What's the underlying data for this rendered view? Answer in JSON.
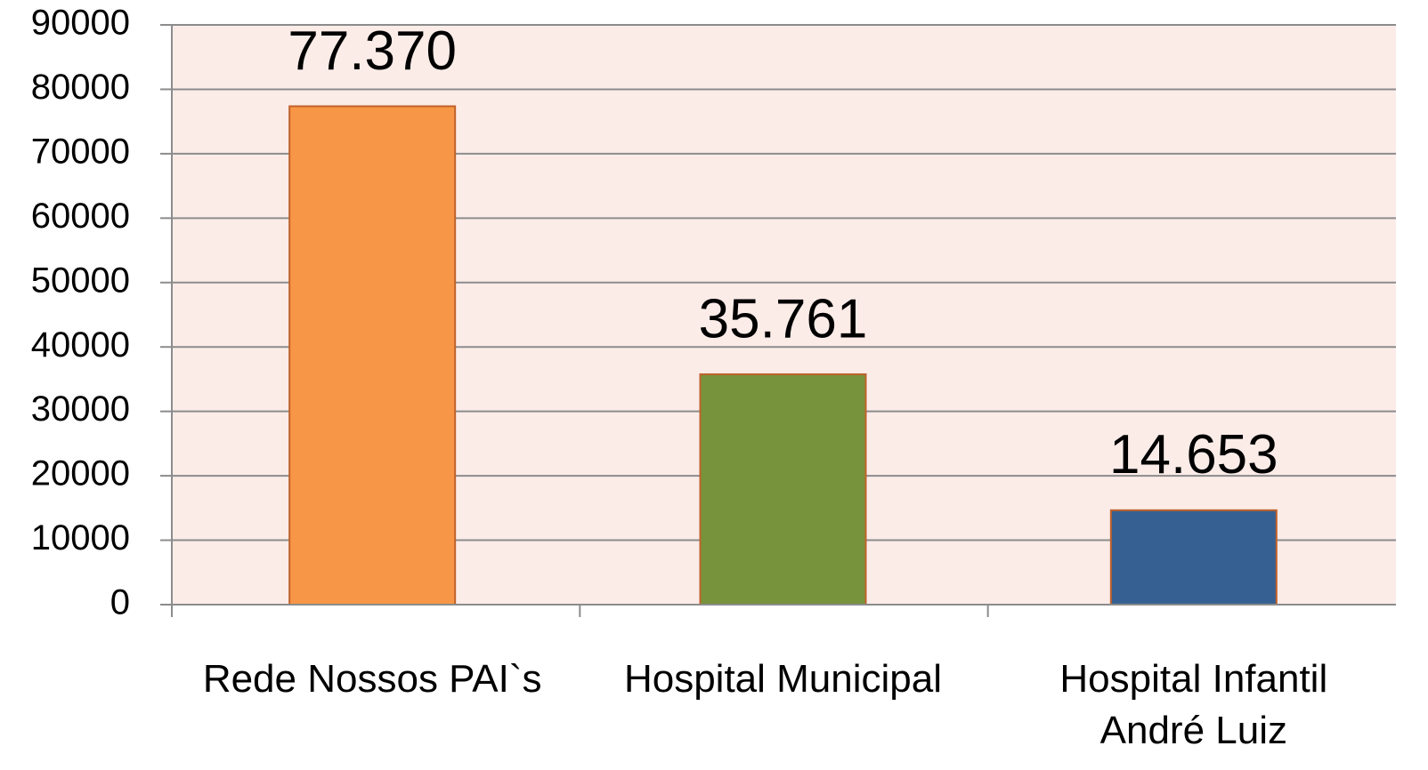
{
  "chart_data": {
    "type": "bar",
    "categories": [
      "Rede Nossos PAI`s",
      "Hospital Municipal",
      "Hospital Infantil André Luiz"
    ],
    "values": [
      77370,
      35761,
      14653
    ],
    "value_labels": [
      "77.370",
      "35.761",
      "14.653"
    ],
    "colors": [
      "#f79646",
      "#77933c",
      "#376092"
    ],
    "ylim": [
      0,
      90000
    ],
    "yticks": [
      0,
      10000,
      20000,
      30000,
      40000,
      50000,
      60000,
      70000,
      80000,
      90000
    ],
    "grid": true
  }
}
